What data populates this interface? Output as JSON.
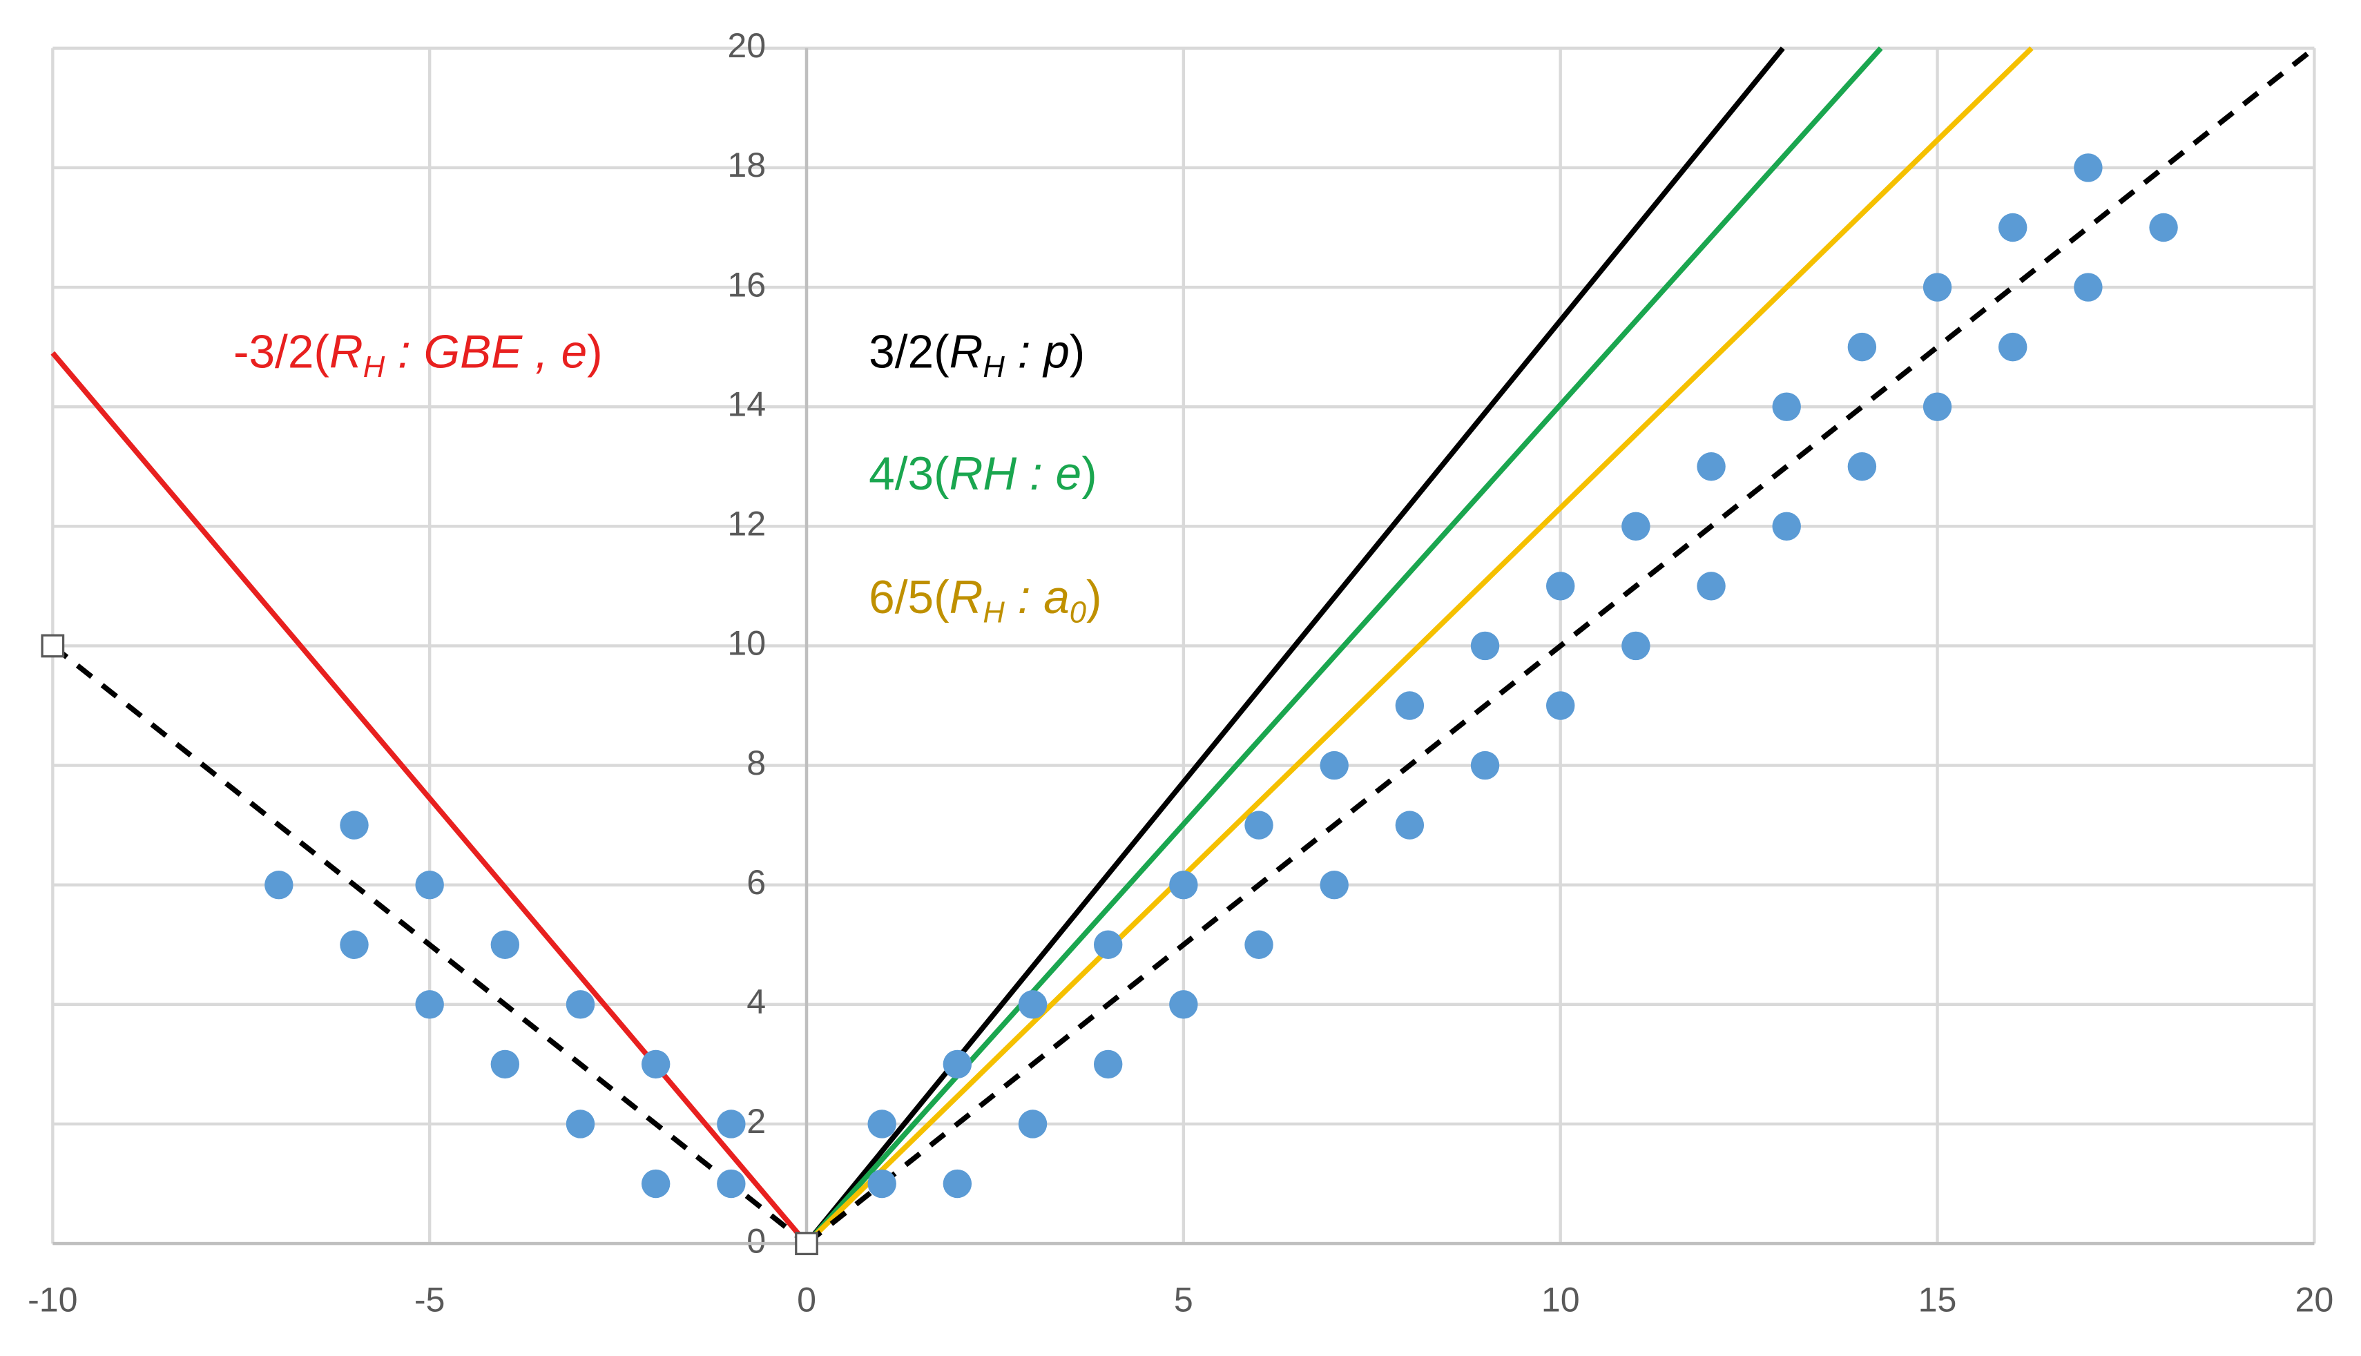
{
  "chart_data": {
    "type": "scatter",
    "xlim": [
      -10,
      20
    ],
    "ylim": [
      0,
      20
    ],
    "xticks": [
      -10,
      -5,
      0,
      5,
      10,
      15,
      20
    ],
    "yticks": [
      0,
      2,
      4,
      6,
      8,
      10,
      12,
      14,
      16,
      18,
      20
    ],
    "grid": true,
    "series": [
      {
        "type": "scatter",
        "color": "#5b9bd5",
        "x": [
          -7,
          -6,
          -6,
          -5,
          -5,
          -4,
          -4,
          -3,
          -3,
          -2,
          -2,
          -1,
          -1,
          1,
          1,
          2,
          2,
          3,
          3,
          4,
          4,
          5,
          5,
          6,
          6,
          7,
          7,
          8,
          8,
          9,
          9,
          10,
          10,
          11,
          11,
          12,
          12,
          13,
          13,
          14,
          14,
          15,
          15,
          16,
          16,
          17,
          17,
          18
        ],
        "values": [
          6,
          7,
          5,
          6,
          4,
          5,
          3,
          4,
          2,
          3,
          1,
          2,
          1,
          2,
          1,
          3,
          1,
          4,
          2,
          5,
          3,
          6,
          4,
          7,
          5,
          8,
          6,
          9,
          7,
          10,
          8,
          11,
          9,
          12,
          10,
          13,
          11,
          14,
          12,
          15,
          13,
          16,
          14,
          17,
          15,
          18,
          16,
          17
        ]
      },
      {
        "type": "line",
        "color": "#000000",
        "x": [
          0,
          12.95
        ],
        "values": [
          0,
          20
        ]
      },
      {
        "type": "line",
        "color": "#1aa64f",
        "x": [
          0,
          14.25
        ],
        "values": [
          0,
          20
        ]
      },
      {
        "type": "line",
        "color": "#f5c000",
        "x": [
          0,
          16.25
        ],
        "values": [
          0,
          20
        ]
      },
      {
        "type": "line",
        "color": "#e8201f",
        "x": [
          -10,
          0
        ],
        "values": [
          14.9,
          0
        ]
      },
      {
        "type": "line",
        "color": "#000000",
        "dashed": true,
        "x": [
          0,
          20
        ],
        "values": [
          0,
          20
        ]
      },
      {
        "type": "line",
        "color": "#000000",
        "dashed": true,
        "marker": "square",
        "x": [
          -10,
          0
        ],
        "values": [
          10,
          0
        ]
      }
    ],
    "annotations": [
      {
        "color": "#e8201f",
        "parts": [
          {
            "text": "-3/2("
          },
          {
            "text": "R",
            "italic": true
          },
          {
            "text": "H",
            "italic": true,
            "sub": true
          },
          {
            "text": " : GBE , e",
            "italic": true
          },
          {
            "text": ")"
          }
        ]
      },
      {
        "color": "#000000",
        "parts": [
          {
            "text": "3/2("
          },
          {
            "text": "R",
            "italic": true
          },
          {
            "text": "H",
            "italic": true,
            "sub": true
          },
          {
            "text": " : p",
            "italic": true
          },
          {
            "text": ")"
          }
        ]
      },
      {
        "color": "#1aa64f",
        "parts": [
          {
            "text": "4/3("
          },
          {
            "text": "RH : e",
            "italic": true
          },
          {
            "text": ")"
          }
        ]
      },
      {
        "color": "#bf9000",
        "parts": [
          {
            "text": "6/5("
          },
          {
            "text": "R",
            "italic": true
          },
          {
            "text": "H",
            "italic": true,
            "sub": true
          },
          {
            "text": " : a",
            "italic": true
          },
          {
            "text": "0",
            "italic": true,
            "sub": true
          },
          {
            "text": ")"
          }
        ]
      }
    ]
  }
}
